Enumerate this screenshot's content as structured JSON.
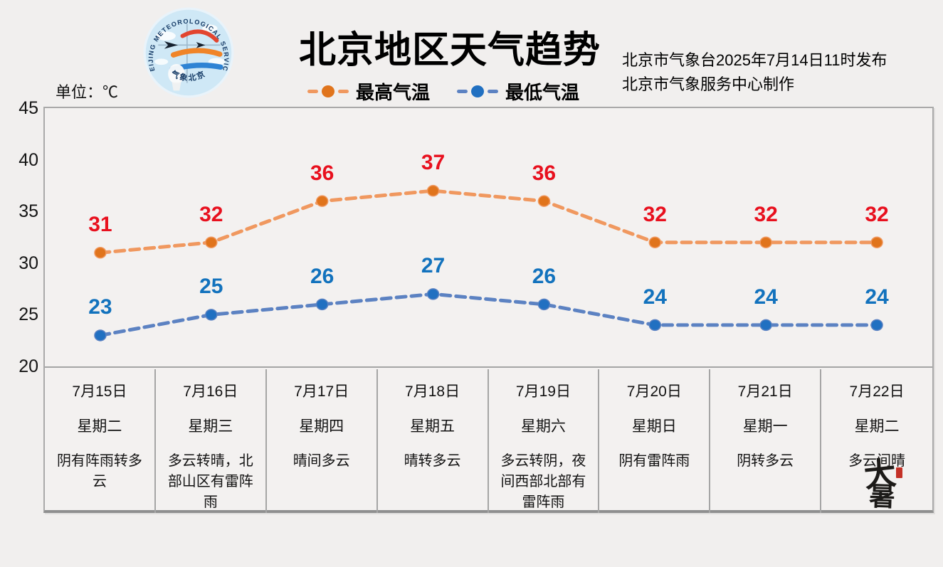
{
  "page": {
    "background": "#f1efee"
  },
  "header": {
    "title": "北京地区天气趋势",
    "unit_label": "单位：℃",
    "issued_line": "北京市气象台2025年7月14日11时发布",
    "producer_line": "北京市气象服务中心制作",
    "logo": {
      "arc_text": "BEIJING METEOROLOGICAL SERVICE",
      "bottom_text": "气象北京"
    }
  },
  "chart_data": {
    "type": "line",
    "title": "北京地区天气趋势",
    "unit": "℃",
    "categories": [
      "7月15日",
      "7月16日",
      "7月17日",
      "7月18日",
      "7月19日",
      "7月20日",
      "7月21日",
      "7月22日"
    ],
    "series": [
      {
        "key": "max-temp",
        "name": "最高气温",
        "values": [
          31,
          32,
          36,
          37,
          36,
          32,
          32,
          32
        ],
        "line_color": "#f0985f",
        "marker_color": "#e0741c",
        "label_color": "#e8101e",
        "line_style": "dashed"
      },
      {
        "key": "min-temp",
        "name": "最低气温",
        "values": [
          23,
          25,
          26,
          27,
          26,
          24,
          24,
          24
        ],
        "line_color": "#5c82c2",
        "marker_color": "#2170c1",
        "label_color": "#1272bd",
        "line_style": "dashed"
      }
    ],
    "legend": [
      "最高气温",
      "最低气温"
    ],
    "legend_position": "top-center",
    "ylim": [
      20,
      45
    ],
    "yticks": [
      20,
      25,
      30,
      35,
      40,
      45
    ],
    "grid": false
  },
  "table": {
    "days": [
      {
        "date": "7月15日",
        "weekday": "星期二",
        "weather": "阴有阵雨转多云"
      },
      {
        "date": "7月16日",
        "weekday": "星期三",
        "weather": "多云转晴，北部山区有雷阵雨"
      },
      {
        "date": "7月17日",
        "weekday": "星期四",
        "weather": "晴间多云"
      },
      {
        "date": "7月18日",
        "weekday": "星期五",
        "weather": "晴转多云"
      },
      {
        "date": "7月19日",
        "weekday": "星期六",
        "weather": "多云转阴，夜间西部北部有雷阵雨"
      },
      {
        "date": "7月20日",
        "weekday": "星期日",
        "weather": "阴有雷阵雨"
      },
      {
        "date": "7月21日",
        "weekday": "星期一",
        "weather": "阴转多云"
      },
      {
        "date": "7月22日",
        "weekday": "星期二",
        "weather": "多云间晴"
      }
    ]
  },
  "stamp": {
    "chars": [
      "大",
      "暑"
    ],
    "seal_color": "#c43127"
  }
}
